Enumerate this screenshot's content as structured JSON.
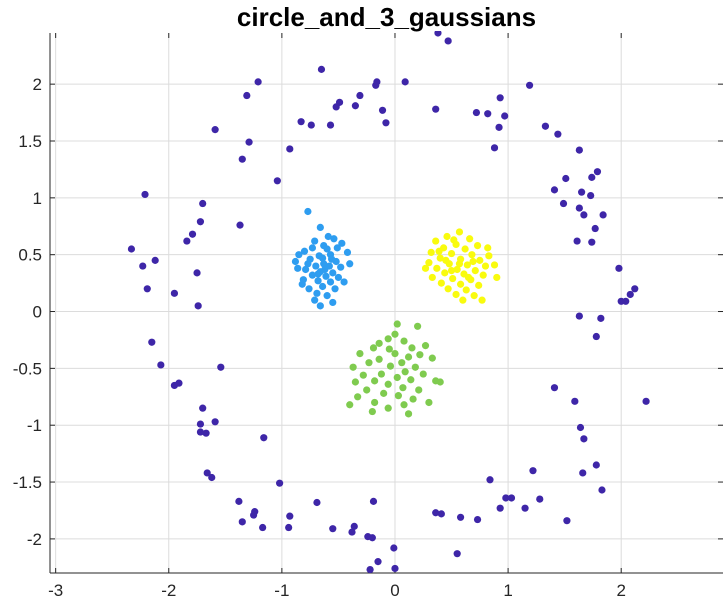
{
  "chart_data": {
    "type": "scatter",
    "title": "circle_and_3_gaussians",
    "xlabel": "",
    "ylabel": "",
    "xlim": [
      -3.05,
      2.9
    ],
    "ylim": [
      -2.3,
      2.45
    ],
    "xticks": [
      -3,
      -2,
      -1,
      0,
      1,
      2
    ],
    "xtick_labels": [
      "-3",
      "-2",
      "-1",
      "0",
      "1",
      "2"
    ],
    "yticks": [
      -2,
      -1.5,
      -1,
      -0.5,
      0,
      0.5,
      1,
      1.5,
      2
    ],
    "ytick_labels": [
      "-2",
      "-1.5",
      "-1",
      "-0.5",
      "0",
      "0.5",
      "1",
      "1.5",
      "2"
    ],
    "grid": true,
    "colors": {
      "circle": "#3e26a8",
      "gaussian_left": "#2e9df0",
      "gaussian_bottom": "#7fcb4f",
      "gaussian_right": "#f9fb0e",
      "grid": "#dcdcdc",
      "axis": "#262626"
    },
    "series": [
      {
        "color": "#3e26a8",
        "points": [
          [
            0.38,
            2.45
          ],
          [
            0.47,
            2.38
          ],
          [
            -0.65,
            2.13
          ],
          [
            -1.21,
            2.02
          ],
          [
            -0.16,
            2.02
          ],
          [
            0.09,
            2.02
          ],
          [
            -0.17,
            1.99
          ],
          [
            1.19,
            1.99
          ],
          [
            -1.31,
            1.9
          ],
          [
            -0.31,
            1.9
          ],
          [
            -0.49,
            1.84
          ],
          [
            -0.35,
            1.81
          ],
          [
            0.93,
            1.88
          ],
          [
            -0.52,
            1.8
          ],
          [
            0.36,
            1.78
          ],
          [
            -0.11,
            1.77
          ],
          [
            0.72,
            1.75
          ],
          [
            0.82,
            1.74
          ],
          [
            0.97,
            1.72
          ],
          [
            -0.83,
            1.67
          ],
          [
            -0.74,
            1.64
          ],
          [
            -0.57,
            1.64
          ],
          [
            -0.08,
            1.66
          ],
          [
            1.33,
            1.63
          ],
          [
            0.92,
            1.62
          ],
          [
            -1.59,
            1.6
          ],
          [
            1.44,
            1.56
          ],
          [
            -1.29,
            1.49
          ],
          [
            0.88,
            1.44
          ],
          [
            -0.93,
            1.43
          ],
          [
            1.63,
            1.42
          ],
          [
            -1.35,
            1.34
          ],
          [
            1.79,
            1.23
          ],
          [
            1.74,
            1.18
          ],
          [
            1.51,
            1.17
          ],
          [
            -1.04,
            1.15
          ],
          [
            1.41,
            1.07
          ],
          [
            1.65,
            1.05
          ],
          [
            -2.21,
            1.03
          ],
          [
            1.73,
            1.02
          ],
          [
            1.49,
            0.95
          ],
          [
            -1.7,
            0.95
          ],
          [
            1.63,
            0.91
          ],
          [
            1.84,
            0.85
          ],
          [
            1.67,
            0.85
          ],
          [
            -1.72,
            0.79
          ],
          [
            -1.37,
            0.76
          ],
          [
            1.77,
            0.73
          ],
          [
            -1.79,
            0.68
          ],
          [
            1.61,
            0.62
          ],
          [
            -1.84,
            0.62
          ],
          [
            1.74,
            0.61
          ],
          [
            -2.33,
            0.55
          ],
          [
            -2.12,
            0.45
          ],
          [
            -2.23,
            0.4
          ],
          [
            1.98,
            0.38
          ],
          [
            -1.75,
            0.34
          ],
          [
            -2.19,
            0.2
          ],
          [
            2.12,
            0.2
          ],
          [
            -1.95,
            0.16
          ],
          [
            2.08,
            0.15
          ],
          [
            2.0,
            0.09
          ],
          [
            2.04,
            0.09
          ],
          [
            -1.74,
            0.05
          ],
          [
            1.63,
            -0.04
          ],
          [
            1.82,
            -0.06
          ],
          [
            1.78,
            -0.22
          ],
          [
            -2.15,
            -0.27
          ],
          [
            -2.07,
            -0.47
          ],
          [
            -1.54,
            -0.49
          ],
          [
            -1.91,
            -0.63
          ],
          [
            -1.95,
            -0.65
          ],
          [
            1.41,
            -0.67
          ],
          [
            2.22,
            -0.79
          ],
          [
            1.59,
            -0.79
          ],
          [
            -1.7,
            -0.85
          ],
          [
            -1.59,
            -0.97
          ],
          [
            -1.72,
            -0.99
          ],
          [
            1.64,
            -1.02
          ],
          [
            -1.72,
            -1.06
          ],
          [
            -1.67,
            -1.07
          ],
          [
            -1.16,
            -1.11
          ],
          [
            1.67,
            -1.12
          ],
          [
            -1.66,
            -1.42
          ],
          [
            1.78,
            -1.35
          ],
          [
            1.66,
            -1.42
          ],
          [
            1.22,
            -1.4
          ],
          [
            -1.62,
            -1.46
          ],
          [
            -1.02,
            -1.51
          ],
          [
            0.84,
            -1.48
          ],
          [
            1.83,
            -1.57
          ],
          [
            0.98,
            -1.64
          ],
          [
            1.03,
            -1.64
          ],
          [
            -1.38,
            -1.67
          ],
          [
            -0.69,
            -1.68
          ],
          [
            -0.19,
            -1.67
          ],
          [
            1.28,
            -1.65
          ],
          [
            -1.24,
            -1.76
          ],
          [
            -0.93,
            -1.8
          ],
          [
            0.93,
            -1.73
          ],
          [
            1.15,
            -1.73
          ],
          [
            -1.25,
            -1.79
          ],
          [
            0.36,
            -1.77
          ],
          [
            0.41,
            -1.78
          ],
          [
            -1.35,
            -1.85
          ],
          [
            -1.17,
            -1.9
          ],
          [
            -0.94,
            -1.9
          ],
          [
            -0.55,
            -1.91
          ],
          [
            0.58,
            -1.81
          ],
          [
            0.73,
            -1.83
          ],
          [
            1.52,
            -1.84
          ],
          [
            -0.36,
            -1.89
          ],
          [
            -0.38,
            -1.94
          ],
          [
            -0.2,
            -1.99
          ],
          [
            -0.24,
            -1.98
          ],
          [
            0.55,
            -2.13
          ],
          [
            -0.01,
            -2.08
          ],
          [
            -0.15,
            -2.2
          ],
          [
            -0.22,
            -2.27
          ],
          [
            0.0,
            -2.26
          ]
        ]
      },
      {
        "color": "#2e9df0",
        "points": [
          [
            -0.77,
            0.88
          ],
          [
            -0.66,
            0.74
          ],
          [
            -0.59,
            0.66
          ],
          [
            -0.71,
            0.62
          ],
          [
            -0.54,
            0.64
          ],
          [
            -0.47,
            0.6
          ],
          [
            -0.63,
            0.58
          ],
          [
            -0.8,
            0.53
          ],
          [
            -0.85,
            0.5
          ],
          [
            -0.42,
            0.52
          ],
          [
            -0.67,
            0.49
          ],
          [
            -0.57,
            0.5
          ],
          [
            -0.75,
            0.46
          ],
          [
            -0.52,
            0.44
          ],
          [
            -0.88,
            0.44
          ],
          [
            -0.63,
            0.42
          ],
          [
            -0.7,
            0.4
          ],
          [
            -0.58,
            0.4
          ],
          [
            -0.48,
            0.39
          ],
          [
            -0.79,
            0.37
          ],
          [
            -0.66,
            0.35
          ],
          [
            -0.55,
            0.34
          ],
          [
            -0.73,
            0.32
          ],
          [
            -0.61,
            0.31
          ],
          [
            -0.5,
            0.3
          ],
          [
            -0.81,
            0.28
          ],
          [
            -0.68,
            0.27
          ],
          [
            -0.57,
            0.26
          ],
          [
            -0.64,
            0.22
          ],
          [
            -0.76,
            0.2
          ],
          [
            -0.53,
            0.2
          ],
          [
            -0.69,
            0.16
          ],
          [
            -0.6,
            0.14
          ],
          [
            -0.71,
            0.1
          ],
          [
            -0.55,
            0.08
          ],
          [
            -0.66,
            0.05
          ],
          [
            -0.82,
            0.24
          ],
          [
            -0.45,
            0.26
          ],
          [
            -0.86,
            0.38
          ],
          [
            -0.4,
            0.42
          ],
          [
            -0.6,
            0.55
          ],
          [
            -0.73,
            0.56
          ],
          [
            -0.51,
            0.56
          ],
          [
            -0.77,
            0.42
          ],
          [
            -0.64,
            0.47
          ],
          [
            -0.56,
            0.46
          ],
          [
            -0.68,
            0.33
          ],
          [
            -0.62,
            0.37
          ]
        ]
      },
      {
        "color": "#7fcb4f",
        "points": [
          [
            0.02,
            -0.11
          ],
          [
            0.2,
            -0.13
          ],
          [
            -0.06,
            -0.24
          ],
          [
            0.08,
            -0.26
          ],
          [
            0.15,
            -0.32
          ],
          [
            -0.19,
            -0.32
          ],
          [
            -0.05,
            -0.33
          ],
          [
            0.27,
            -0.3
          ],
          [
            0.0,
            -0.37
          ],
          [
            -0.31,
            -0.37
          ],
          [
            0.12,
            -0.4
          ],
          [
            -0.14,
            -0.42
          ],
          [
            0.06,
            -0.45
          ],
          [
            0.33,
            -0.41
          ],
          [
            -0.23,
            -0.45
          ],
          [
            -0.04,
            -0.48
          ],
          [
            0.18,
            -0.49
          ],
          [
            -0.37,
            -0.49
          ],
          [
            0.09,
            -0.53
          ],
          [
            -0.12,
            -0.55
          ],
          [
            0.25,
            -0.55
          ],
          [
            -0.28,
            -0.56
          ],
          [
            0.02,
            -0.58
          ],
          [
            0.14,
            -0.6
          ],
          [
            -0.18,
            -0.61
          ],
          [
            0.36,
            -0.61
          ],
          [
            -0.06,
            -0.64
          ],
          [
            0.07,
            -0.67
          ],
          [
            -0.25,
            -0.69
          ],
          [
            0.21,
            -0.69
          ],
          [
            -0.1,
            -0.72
          ],
          [
            0.03,
            -0.74
          ],
          [
            -0.33,
            -0.75
          ],
          [
            0.16,
            -0.77
          ],
          [
            -0.18,
            -0.8
          ],
          [
            0.08,
            -0.82
          ],
          [
            -0.06,
            -0.85
          ],
          [
            -0.2,
            -0.88
          ],
          [
            0.12,
            -0.9
          ],
          [
            -0.4,
            -0.82
          ],
          [
            0.4,
            -0.62
          ],
          [
            -0.35,
            -0.62
          ],
          [
            0.3,
            -0.8
          ],
          [
            0.0,
            -0.2
          ],
          [
            -0.14,
            -0.28
          ],
          [
            0.22,
            -0.38
          ]
        ]
      },
      {
        "color": "#f9fb0e",
        "points": [
          [
            0.57,
            0.7
          ],
          [
            0.46,
            0.66
          ],
          [
            0.66,
            0.64
          ],
          [
            0.36,
            0.62
          ],
          [
            0.54,
            0.59
          ],
          [
            0.73,
            0.58
          ],
          [
            0.43,
            0.56
          ],
          [
            0.62,
            0.55
          ],
          [
            0.32,
            0.52
          ],
          [
            0.5,
            0.51
          ],
          [
            0.68,
            0.5
          ],
          [
            0.83,
            0.49
          ],
          [
            0.4,
            0.47
          ],
          [
            0.58,
            0.46
          ],
          [
            0.75,
            0.45
          ],
          [
            0.3,
            0.43
          ],
          [
            0.48,
            0.42
          ],
          [
            0.64,
            0.41
          ],
          [
            0.88,
            0.41
          ],
          [
            0.37,
            0.38
          ],
          [
            0.55,
            0.37
          ],
          [
            0.71,
            0.36
          ],
          [
            0.44,
            0.34
          ],
          [
            0.61,
            0.33
          ],
          [
            0.78,
            0.32
          ],
          [
            0.33,
            0.3
          ],
          [
            0.51,
            0.29
          ],
          [
            0.67,
            0.28
          ],
          [
            0.41,
            0.25
          ],
          [
            0.58,
            0.24
          ],
          [
            0.74,
            0.23
          ],
          [
            0.47,
            0.2
          ],
          [
            0.63,
            0.19
          ],
          [
            0.54,
            0.15
          ],
          [
            0.7,
            0.14
          ],
          [
            0.6,
            0.1
          ],
          [
            0.77,
            0.1
          ],
          [
            0.9,
            0.3
          ],
          [
            0.27,
            0.38
          ],
          [
            0.82,
            0.56
          ],
          [
            0.52,
            0.63
          ],
          [
            0.45,
            0.45
          ],
          [
            0.69,
            0.44
          ],
          [
            0.57,
            0.42
          ],
          [
            0.65,
            0.3
          ],
          [
            0.5,
            0.36
          ],
          [
            0.8,
            0.4
          ],
          [
            0.39,
            0.53
          ]
        ]
      }
    ]
  }
}
